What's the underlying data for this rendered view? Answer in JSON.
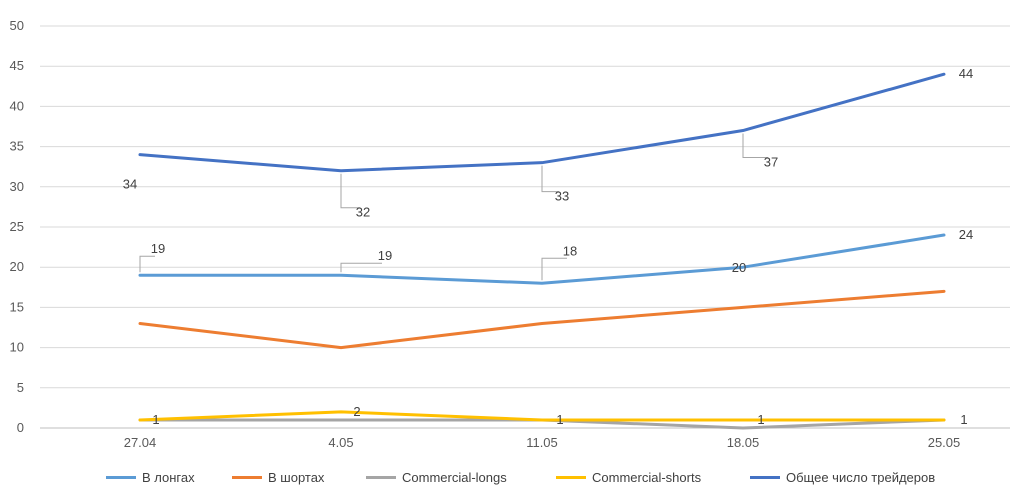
{
  "chart_data": {
    "type": "line",
    "categories": [
      "27.04",
      "4.05",
      "11.05",
      "18.05",
      "25.05"
    ],
    "ylim": [
      0,
      50
    ],
    "yticks": [
      0,
      5,
      10,
      15,
      20,
      25,
      30,
      35,
      40,
      45,
      50
    ],
    "grid": true,
    "legend_position": "bottom",
    "series": [
      {
        "name": "В лонгах",
        "color": "#5B9BD5",
        "values": [
          19,
          19,
          18,
          20,
          24
        ],
        "labels": [
          "19",
          "19",
          "18",
          "20",
          "24"
        ]
      },
      {
        "name": "В шортах",
        "color": "#ED7D31",
        "values": [
          13,
          10,
          13,
          15,
          17
        ],
        "labels": []
      },
      {
        "name": "Commercial-longs",
        "color": "#A5A5A5",
        "values": [
          1,
          1,
          1,
          0,
          1
        ],
        "labels": []
      },
      {
        "name": "Commercial-shorts",
        "color": "#FFC000",
        "values": [
          1,
          2,
          1,
          1,
          1
        ],
        "labels": [
          "1",
          "2",
          "1",
          "1",
          "1"
        ]
      },
      {
        "name": "Общее число трейдеров",
        "color": "#4472C4",
        "values": [
          34,
          32,
          33,
          37,
          44
        ],
        "labels": [
          "34",
          "32",
          "33",
          "37",
          "44"
        ]
      }
    ]
  }
}
